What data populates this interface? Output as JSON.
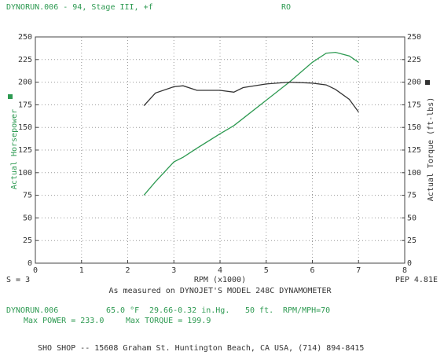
{
  "header": {
    "run": "DYNORUN.006 - 94, Stage III, +f",
    "tag": "RO"
  },
  "chart_data": {
    "type": "line",
    "xlabel": "RPM (x1000)",
    "ylabel": "Actual Horsepower",
    "y2label": "Actual Torque (ft-lbs)",
    "note_left": "S = 3",
    "note_right": "PEP 4.81E",
    "caption": "As measured on DYNOJET'S MODEL 248C DYNAMOMETER",
    "x": [
      2.35,
      2.6,
      3,
      3.2,
      3.5,
      4,
      4.3,
      4.5,
      5,
      5.5,
      6,
      6.3,
      6.5,
      6.8,
      7.0
    ],
    "series": [
      {
        "color": "#2e9a52",
        "values": [
          75,
          90,
          112,
          117,
          127,
          143,
          152,
          160,
          180,
          200,
          222,
          232,
          233,
          229,
          222
        ]
      },
      {
        "color": "#333333",
        "axis": "y2",
        "values": [
          174,
          188,
          195,
          196,
          191,
          191,
          189,
          194,
          198,
          200,
          199,
          197,
          192,
          181,
          167
        ]
      }
    ],
    "xlim": [
      0,
      8
    ],
    "xticks": [
      0,
      1,
      2,
      3,
      4,
      5,
      6,
      7,
      8
    ],
    "ylim": [
      0,
      250
    ],
    "yticks": [
      0,
      25,
      50,
      75,
      100,
      125,
      150,
      175,
      200,
      225,
      250
    ],
    "y2lim": [
      0,
      250
    ],
    "y2ticks": [
      0,
      25,
      50,
      75,
      100,
      125,
      150,
      175,
      200,
      225,
      250
    ],
    "grid": true
  },
  "footer": {
    "run": "DYNORUN.006",
    "temp": "65.0 °F",
    "baro": "29.66-0.32 in.Hg.",
    "alt": "50 ft.",
    "ratio": "RPM/MPH=70",
    "max_power": "Max POWER = 233.0",
    "max_torque": "Max TORQUE = 199.9",
    "shop": "SHO SHOP -- 15608 Graham St. Huntington Beach, CA USA, (714) 894-8415"
  }
}
